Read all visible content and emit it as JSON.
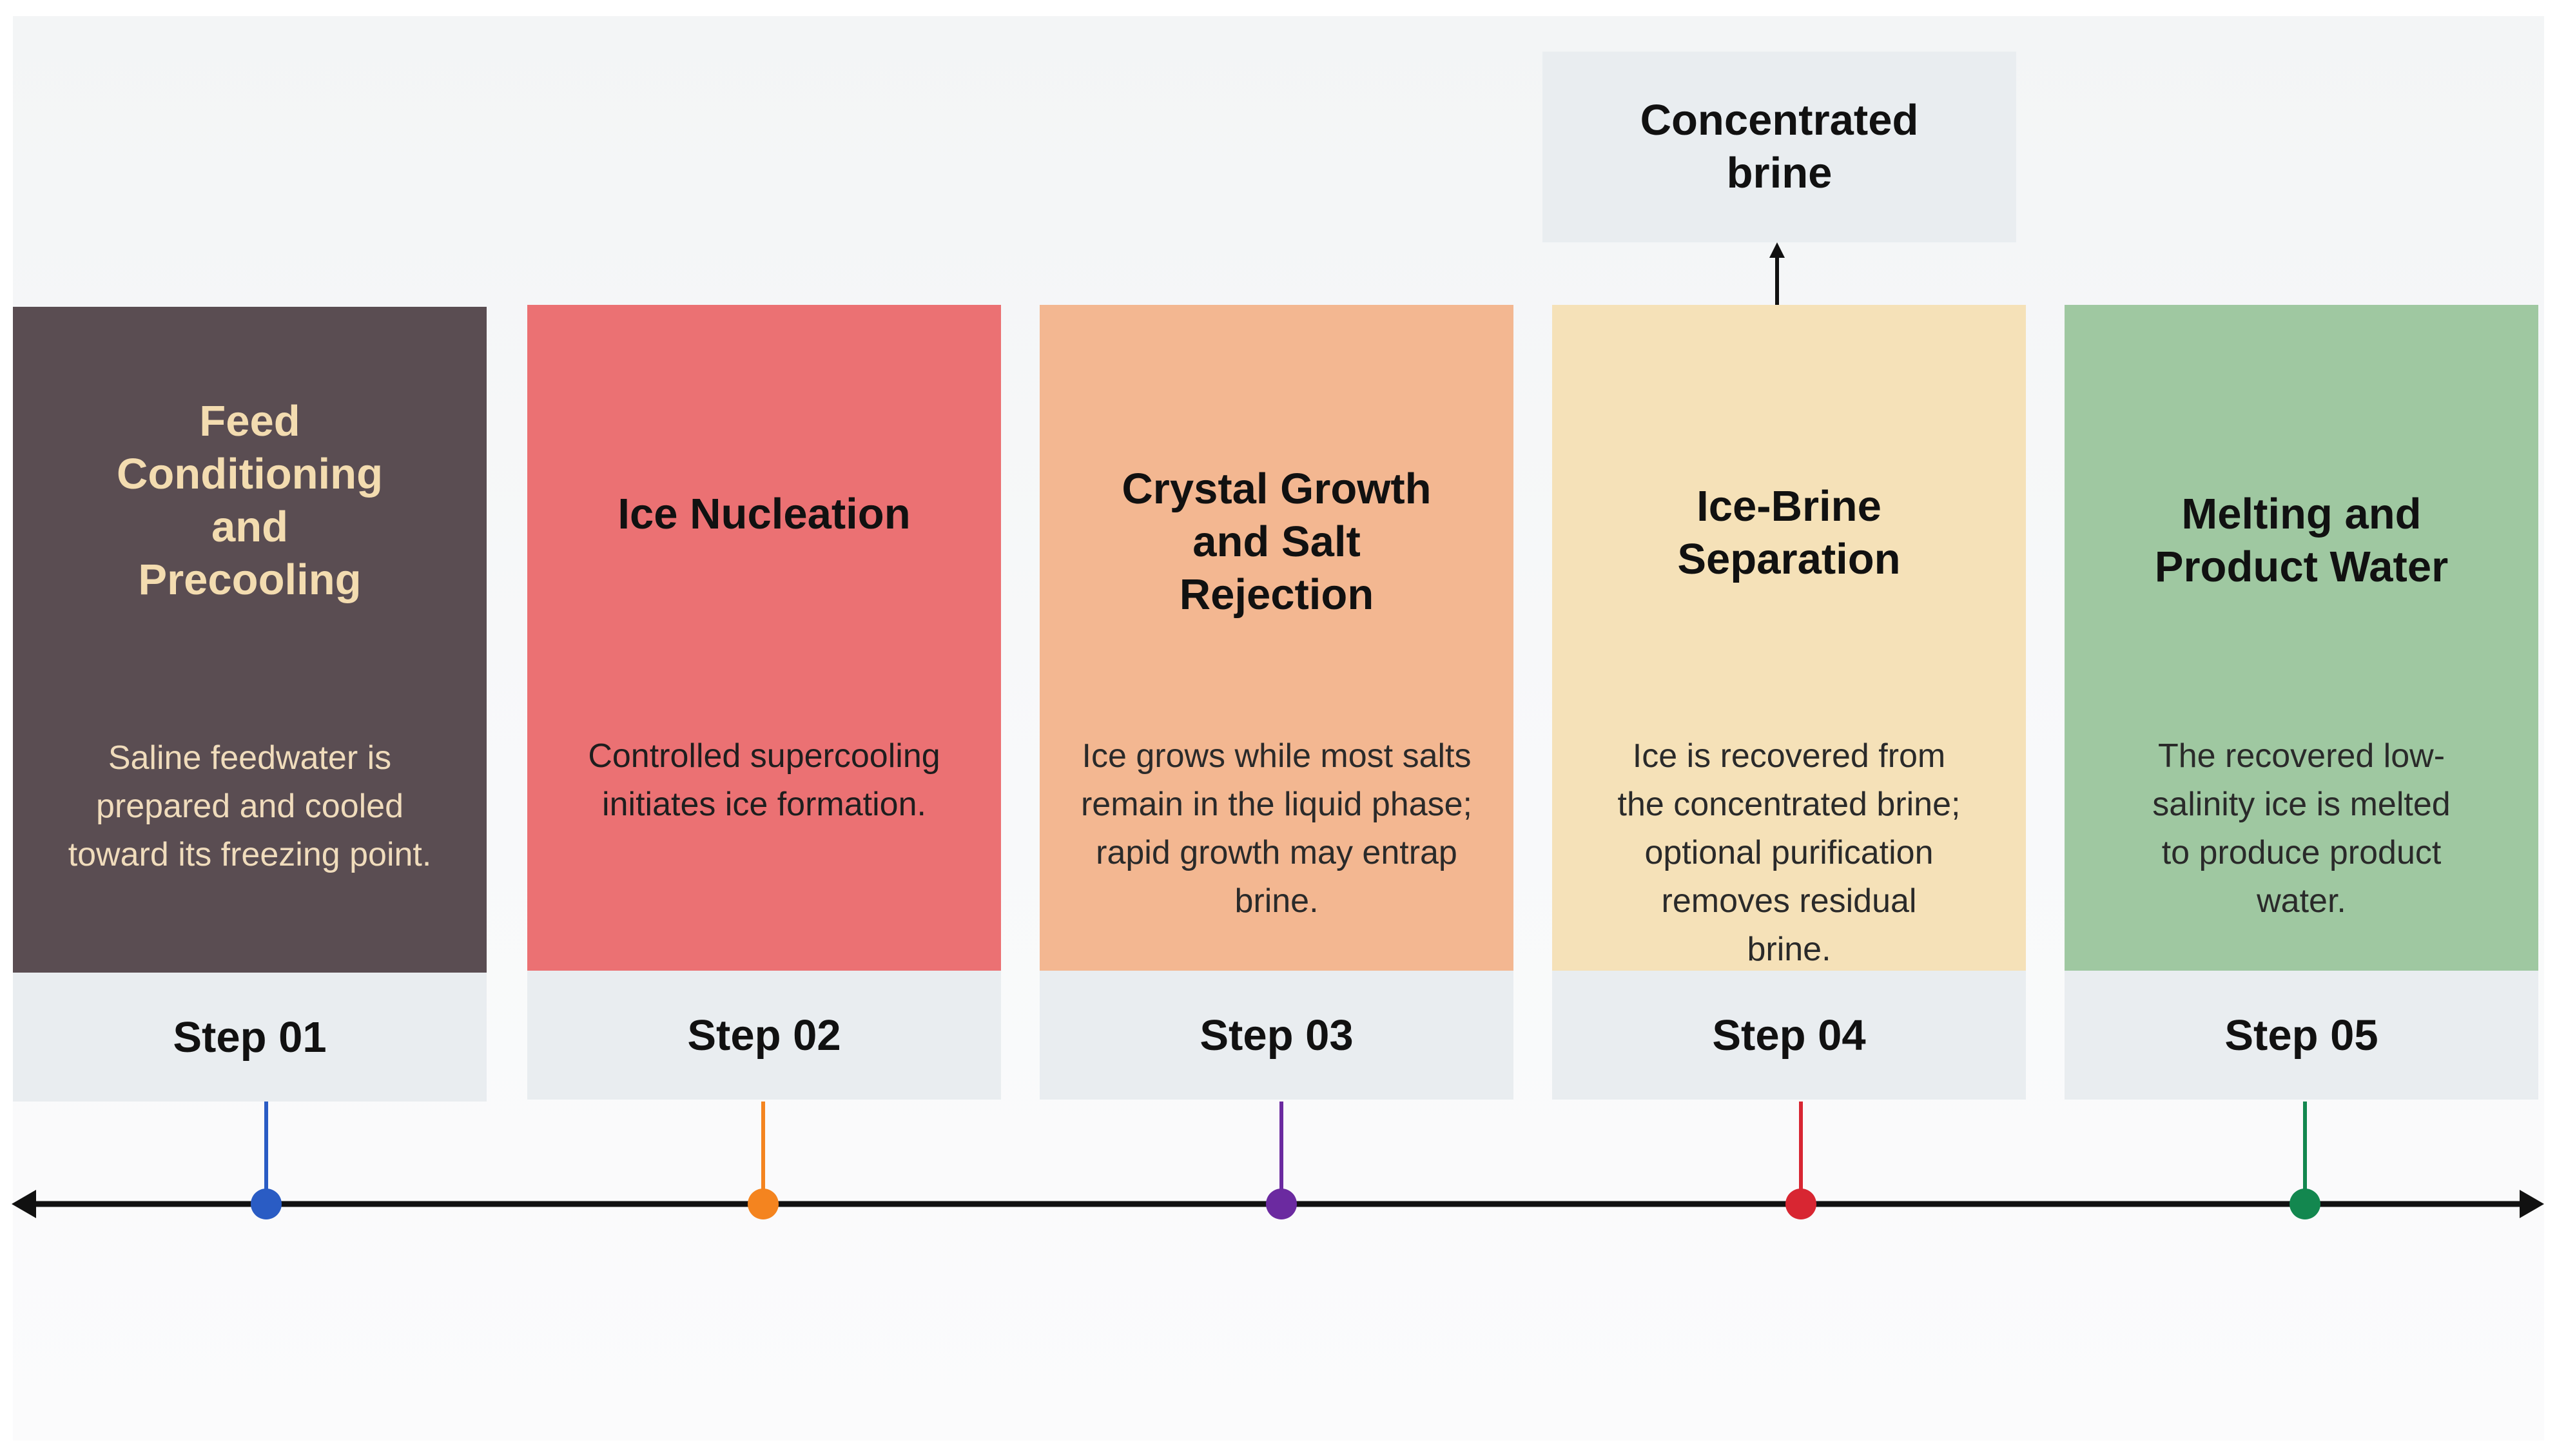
{
  "output_box": {
    "label": "Concentrated\nbrine"
  },
  "steps": [
    {
      "title": "Feed\nConditioning\nand\nPrecooling",
      "description": "Saline feedwater is\nprepared and cooled\ntoward its freezing point.",
      "step_label": "Step 01",
      "card_color": "#5a4d52",
      "title_color": "#f3dcb0",
      "text_color": "#f0dcbc",
      "marker_color": "#2a5cc4"
    },
    {
      "title": "Ice Nucleation",
      "description": "Controlled supercooling\ninitiates ice formation.",
      "step_label": "Step 02",
      "card_color": "#eb7173",
      "title_color": "#111111",
      "text_color": "#1e1e1e",
      "marker_color": "#f4841f"
    },
    {
      "title": "Crystal Growth\nand Salt\nRejection",
      "description": "Ice grows while most salts\nremain in the liquid phase;\nrapid growth may entrap\nbrine.",
      "step_label": "Step 03",
      "card_color": "#f3b791",
      "title_color": "#111111",
      "text_color": "#2a2a2a",
      "marker_color": "#6b2aa0"
    },
    {
      "title": "Ice-Brine\nSeparation",
      "description": "Ice is recovered from\nthe concentrated brine;\noptional purification\nremoves residual\nbrine.",
      "step_label": "Step 04",
      "card_color": "#f5e1b8",
      "title_color": "#111111",
      "text_color": "#2a2a2a",
      "marker_color": "#d82632"
    },
    {
      "title": "Melting and\nProduct Water",
      "description": "The recovered low-\nsalinity ice is melted\nto produce product\nwater.",
      "step_label": "Step 05",
      "card_color": "#9fc8a1",
      "title_color": "#111111",
      "text_color": "#2a2a2a",
      "marker_color": "#13874f"
    }
  ]
}
